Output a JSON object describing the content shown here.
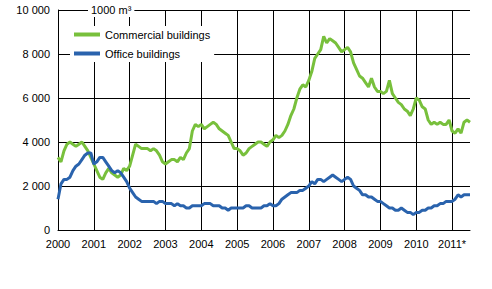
{
  "chart_data": {
    "type": "line",
    "y_label": "1000 m³",
    "categories": [
      "2000",
      null,
      null,
      null,
      null,
      null,
      null,
      null,
      null,
      null,
      null,
      null,
      "2001",
      null,
      null,
      null,
      null,
      null,
      null,
      null,
      null,
      null,
      null,
      null,
      "2002",
      null,
      null,
      null,
      null,
      null,
      null,
      null,
      null,
      null,
      null,
      null,
      "2003",
      null,
      null,
      null,
      null,
      null,
      null,
      null,
      null,
      null,
      null,
      null,
      "2004",
      null,
      null,
      null,
      null,
      null,
      null,
      null,
      null,
      null,
      null,
      null,
      "2005",
      null,
      null,
      null,
      null,
      null,
      null,
      null,
      null,
      null,
      null,
      null,
      "2006",
      null,
      null,
      null,
      null,
      null,
      null,
      null,
      null,
      null,
      null,
      null,
      "2007",
      null,
      null,
      null,
      null,
      null,
      null,
      null,
      null,
      null,
      null,
      null,
      "2008",
      null,
      null,
      null,
      null,
      null,
      null,
      null,
      null,
      null,
      null,
      null,
      "2009",
      null,
      null,
      null,
      null,
      null,
      null,
      null,
      null,
      null,
      null,
      null,
      "2010",
      null,
      null,
      null,
      null,
      null,
      null,
      null,
      null,
      null,
      null,
      null,
      "2011*",
      null,
      null,
      null,
      null,
      null,
      null
    ],
    "series": [
      {
        "name": "Commercial buildings",
        "color": "#78c03c",
        "values": [
          3300,
          3100,
          3600,
          3900,
          4000,
          3900,
          3800,
          3900,
          4000,
          3800,
          3600,
          3300,
          3000,
          2700,
          2400,
          2300,
          2600,
          2800,
          2600,
          2500,
          2400,
          2500,
          2800,
          2700,
          2900,
          3400,
          3900,
          3800,
          3700,
          3700,
          3700,
          3600,
          3700,
          3600,
          3400,
          3100,
          3000,
          3100,
          3200,
          3200,
          3100,
          3300,
          3200,
          3500,
          3700,
          4500,
          4800,
          4700,
          4800,
          4600,
          4700,
          4800,
          4900,
          4800,
          4600,
          4500,
          4400,
          4300,
          4000,
          3700,
          3700,
          3600,
          3400,
          3500,
          3700,
          3800,
          3900,
          4000,
          4000,
          3900,
          3800,
          4000,
          4100,
          4300,
          4200,
          4300,
          4500,
          4800,
          5200,
          5500,
          6000,
          6400,
          6600,
          6500,
          6800,
          7200,
          7800,
          8000,
          8200,
          8800,
          8500,
          8700,
          8600,
          8500,
          8300,
          8100,
          8200,
          8300,
          8100,
          7600,
          7300,
          7000,
          6900,
          6700,
          6500,
          6900,
          6500,
          6300,
          6300,
          6200,
          6300,
          6800,
          6200,
          6000,
          5800,
          5700,
          5500,
          5400,
          5200,
          5500,
          6000,
          5900,
          5600,
          5500,
          5000,
          4800,
          4900,
          4800,
          4900,
          4800,
          4800,
          5000,
          4500,
          4400,
          4600,
          4400,
          4900,
          5000,
          4900
        ]
      },
      {
        "name": "Office buildings",
        "color": "#2a63ad",
        "values": [
          1400,
          2100,
          2300,
          2300,
          2400,
          2700,
          2900,
          3000,
          3200,
          3400,
          3500,
          3500,
          3000,
          3100,
          3300,
          3300,
          3100,
          2900,
          2700,
          2600,
          2700,
          2600,
          2400,
          2200,
          1900,
          1700,
          1500,
          1400,
          1300,
          1300,
          1300,
          1300,
          1300,
          1200,
          1300,
          1300,
          1200,
          1200,
          1200,
          1100,
          1200,
          1100,
          1100,
          1000,
          1000,
          1100,
          1100,
          1100,
          1100,
          1200,
          1200,
          1200,
          1100,
          1100,
          1100,
          1000,
          1000,
          900,
          1000,
          1000,
          1000,
          1000,
          1000,
          1100,
          1100,
          1000,
          1000,
          1000,
          1000,
          1100,
          1100,
          1200,
          1100,
          1100,
          1200,
          1400,
          1500,
          1600,
          1700,
          1700,
          1700,
          1800,
          1800,
          1900,
          2000,
          2200,
          2100,
          2300,
          2300,
          2200,
          2300,
          2400,
          2500,
          2400,
          2300,
          2200,
          2300,
          2400,
          2300,
          2000,
          1900,
          1800,
          1600,
          1600,
          1500,
          1500,
          1400,
          1300,
          1300,
          1200,
          1100,
          1000,
          1000,
          900,
          900,
          1000,
          900,
          800,
          800,
          700,
          800,
          800,
          900,
          900,
          1000,
          1000,
          1100,
          1100,
          1200,
          1200,
          1300,
          1300,
          1300,
          1400,
          1600,
          1500,
          1600,
          1600,
          1600
        ]
      }
    ],
    "ylim": [
      0,
      10000
    ],
    "yticks": [
      0,
      {
        "value": 2000,
        "label": "2 000"
      },
      {
        "value": 4000,
        "label": "4 000"
      },
      {
        "value": 6000,
        "label": "6 000"
      },
      {
        "value": 8000,
        "label": "8 000"
      },
      {
        "value": 10000,
        "label": "10 000"
      }
    ],
    "grid": true,
    "legend": "top-left"
  }
}
